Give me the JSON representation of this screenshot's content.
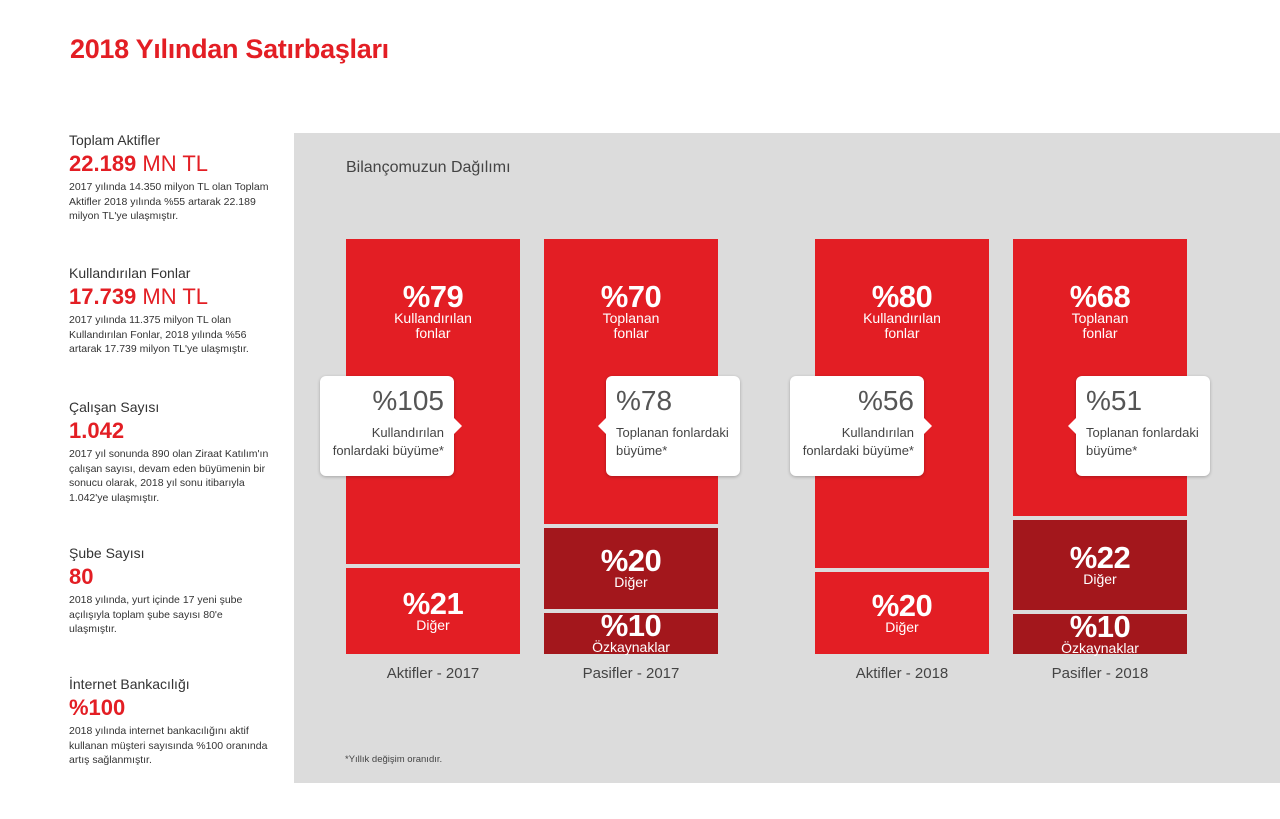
{
  "page_title": "2018 Yılından Satırbaşları",
  "stats": [
    {
      "label": "Toplam Aktifler",
      "value": "22.189",
      "unit": "MN TL",
      "desc": "2017 yılında 14.350 milyon TL olan Toplam Aktifler 2018 yılında %55 artarak 22.189 milyon TL'ye ulaşmıştır."
    },
    {
      "label": "Kullandırılan Fonlar",
      "value": "17.739",
      "unit": "MN TL",
      "desc": "2017 yılında 11.375 milyon TL olan Kullandırılan Fonlar, 2018 yılında %56 artarak 17.739 milyon TL'ye ulaşmıştır."
    },
    {
      "label": "Çalışan Sayısı",
      "value": "1.042",
      "unit": "",
      "desc": "2017 yıl sonunda 890 olan Ziraat Katılım'ın çalışan sayısı, devam eden büyümenin bir sonucu olarak, 2018 yıl sonu itibarıyla 1.042'ye ulaşmıştır."
    },
    {
      "label": "Şube Sayısı",
      "value": "80",
      "unit": "",
      "desc": "2018 yılında, yurt içinde 17 yeni şube açılışıyla toplam şube sayısı 80'e ulaşmıştır."
    },
    {
      "label": "İnternet Bankacılığı",
      "value": "%100",
      "unit": "",
      "desc": "2018 yılında internet bankacılığını aktif kullanan müşteri sayısında %100 oranında artış sağlanmıştır."
    }
  ],
  "panel": {
    "title": "Bilançomuzun Dağılımı",
    "footnote": "*Yıllık değişim oranıdır."
  },
  "colors": {
    "accent": "#e31e24",
    "dark": "#a3171c",
    "panel_bg": "#dcdcdc"
  },
  "chart_data": {
    "type": "bar",
    "stacked": true,
    "categories": [
      "Aktifler - 2017",
      "Pasifler - 2017",
      "Aktifler - 2018",
      "Pasifler - 2018"
    ],
    "columns": [
      {
        "category": "Aktifler - 2017",
        "segments": [
          {
            "pct_label": "%79",
            "name": "Kullandırılan fonlar",
            "value": 79,
            "color": "#e31e24"
          },
          {
            "pct_label": "%21",
            "name": "Diğer",
            "value": 21,
            "color": "#e31e24"
          }
        ],
        "callout": {
          "value": "%105",
          "text": "Kullandırılan fonlardaki büyüme*"
        }
      },
      {
        "category": "Pasifler - 2017",
        "segments": [
          {
            "pct_label": "%70",
            "name": "Toplanan fonlar",
            "value": 70,
            "color": "#e31e24"
          },
          {
            "pct_label": "%20",
            "name": "Diğer",
            "value": 20,
            "color": "#a3171c"
          },
          {
            "pct_label": "%10",
            "name": "Özkaynaklar",
            "value": 10,
            "color": "#a3171c"
          }
        ],
        "callout": {
          "value": "%78",
          "text": "Toplanan fonlardaki büyüme*"
        }
      },
      {
        "category": "Aktifler - 2018",
        "segments": [
          {
            "pct_label": "%80",
            "name": "Kullandırılan fonlar",
            "value": 80,
            "color": "#e31e24"
          },
          {
            "pct_label": "%20",
            "name": "Diğer",
            "value": 20,
            "color": "#e31e24"
          }
        ],
        "callout": {
          "value": "%56",
          "text": "Kullandırılan fonlardaki büyüme*"
        }
      },
      {
        "category": "Pasifler - 2018",
        "segments": [
          {
            "pct_label": "%68",
            "name": "Toplanan fonlar",
            "value": 68,
            "color": "#e31e24"
          },
          {
            "pct_label": "%22",
            "name": "Diğer",
            "value": 22,
            "color": "#a3171c"
          },
          {
            "pct_label": "%10",
            "name": "Özkaynaklar",
            "value": 10,
            "color": "#a3171c"
          }
        ],
        "callout": {
          "value": "%51",
          "text": "Toplanan fonlardaki büyüme*"
        }
      }
    ]
  }
}
